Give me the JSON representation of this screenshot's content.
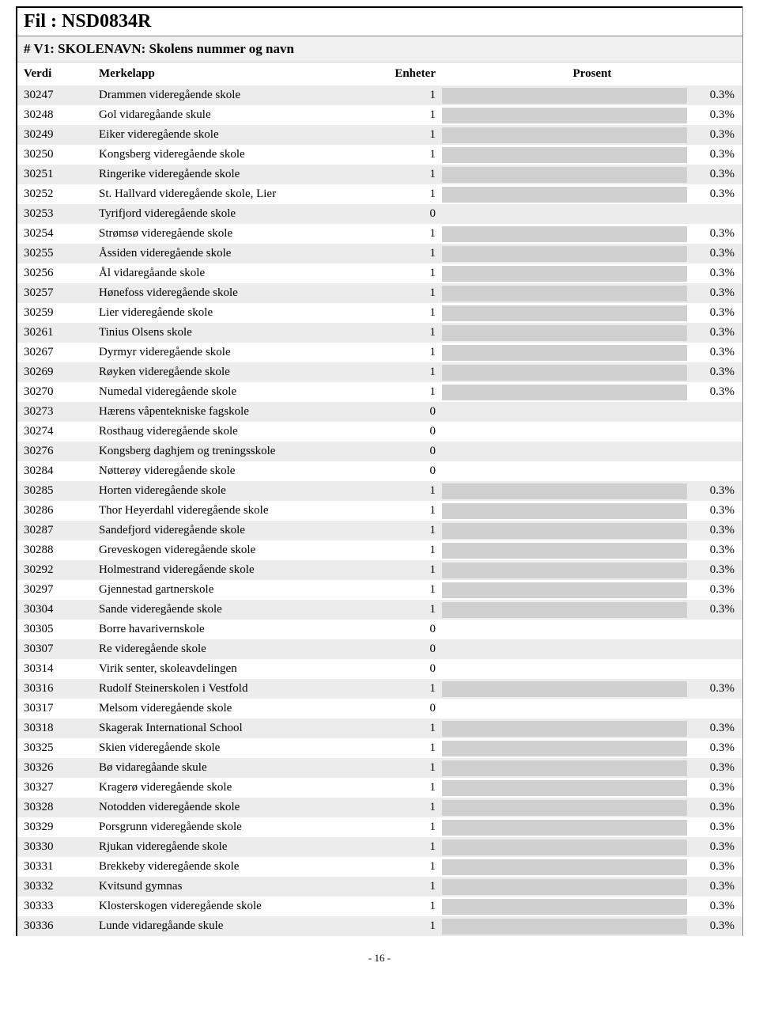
{
  "title": "Fil : NSD0834R",
  "subtitle": "# V1: SKOLENAVN: Skolens nummer og navn",
  "headers": {
    "verdi": "Verdi",
    "merkelapp": "Merkelapp",
    "enheter": "Enheter",
    "prosent": "Prosent"
  },
  "bar_fill_color": "#d0d0d0",
  "bar_full_width_pct": 100,
  "rows": [
    {
      "verdi": "30247",
      "merkelapp": "Drammen videregående skole",
      "enheter": "1",
      "pct": "0.3%",
      "bar": 100
    },
    {
      "verdi": "30248",
      "merkelapp": "Gol vidaregåande skule",
      "enheter": "1",
      "pct": "0.3%",
      "bar": 100
    },
    {
      "verdi": "30249",
      "merkelapp": "Eiker videregående skole",
      "enheter": "1",
      "pct": "0.3%",
      "bar": 100
    },
    {
      "verdi": "30250",
      "merkelapp": "Kongsberg videregående skole",
      "enheter": "1",
      "pct": "0.3%",
      "bar": 100
    },
    {
      "verdi": "30251",
      "merkelapp": "Ringerike videregående skole",
      "enheter": "1",
      "pct": "0.3%",
      "bar": 100
    },
    {
      "verdi": "30252",
      "merkelapp": "St. Hallvard videregående skole, Lier",
      "enheter": "1",
      "pct": "0.3%",
      "bar": 100
    },
    {
      "verdi": "30253",
      "merkelapp": "Tyrifjord videregående skole",
      "enheter": "0",
      "pct": "",
      "bar": 0
    },
    {
      "verdi": "30254",
      "merkelapp": "Strømsø videregående skole",
      "enheter": "1",
      "pct": "0.3%",
      "bar": 100
    },
    {
      "verdi": "30255",
      "merkelapp": "Åssiden videregående skole",
      "enheter": "1",
      "pct": "0.3%",
      "bar": 100
    },
    {
      "verdi": "30256",
      "merkelapp": "Ål vidaregåande skole",
      "enheter": "1",
      "pct": "0.3%",
      "bar": 100
    },
    {
      "verdi": "30257",
      "merkelapp": "Hønefoss videregående skole",
      "enheter": "1",
      "pct": "0.3%",
      "bar": 100
    },
    {
      "verdi": "30259",
      "merkelapp": "Lier videregående skole",
      "enheter": "1",
      "pct": "0.3%",
      "bar": 100
    },
    {
      "verdi": "30261",
      "merkelapp": "Tinius Olsens skole",
      "enheter": "1",
      "pct": "0.3%",
      "bar": 100
    },
    {
      "verdi": "30267",
      "merkelapp": "Dyrmyr videregående skole",
      "enheter": "1",
      "pct": "0.3%",
      "bar": 100
    },
    {
      "verdi": "30269",
      "merkelapp": "Røyken videregående skole",
      "enheter": "1",
      "pct": "0.3%",
      "bar": 100
    },
    {
      "verdi": "30270",
      "merkelapp": "Numedal videregående skole",
      "enheter": "1",
      "pct": "0.3%",
      "bar": 100
    },
    {
      "verdi": "30273",
      "merkelapp": "Hærens våpentekniske fagskole",
      "enheter": "0",
      "pct": "",
      "bar": 0
    },
    {
      "verdi": "30274",
      "merkelapp": "Rosthaug videregående skole",
      "enheter": "0",
      "pct": "",
      "bar": 0
    },
    {
      "verdi": "30276",
      "merkelapp": "Kongsberg daghjem og treningsskole",
      "enheter": "0",
      "pct": "",
      "bar": 0
    },
    {
      "verdi": "30284",
      "merkelapp": "Nøtterøy videregående skole",
      "enheter": "0",
      "pct": "",
      "bar": 0
    },
    {
      "verdi": "30285",
      "merkelapp": "Horten videregående skole",
      "enheter": "1",
      "pct": "0.3%",
      "bar": 100
    },
    {
      "verdi": "30286",
      "merkelapp": "Thor Heyerdahl videregående skole",
      "enheter": "1",
      "pct": "0.3%",
      "bar": 100
    },
    {
      "verdi": "30287",
      "merkelapp": "Sandefjord videregående skole",
      "enheter": "1",
      "pct": "0.3%",
      "bar": 100
    },
    {
      "verdi": "30288",
      "merkelapp": "Greveskogen videregående skole",
      "enheter": "1",
      "pct": "0.3%",
      "bar": 100
    },
    {
      "verdi": "30292",
      "merkelapp": "Holmestrand videregående skole",
      "enheter": "1",
      "pct": "0.3%",
      "bar": 100
    },
    {
      "verdi": "30297",
      "merkelapp": "Gjennestad gartnerskole",
      "enheter": "1",
      "pct": "0.3%",
      "bar": 100
    },
    {
      "verdi": "30304",
      "merkelapp": "Sande videregående skole",
      "enheter": "1",
      "pct": "0.3%",
      "bar": 100
    },
    {
      "verdi": "30305",
      "merkelapp": "Borre havarivernskole",
      "enheter": "0",
      "pct": "",
      "bar": 0
    },
    {
      "verdi": "30307",
      "merkelapp": "Re videregående skole",
      "enheter": "0",
      "pct": "",
      "bar": 0
    },
    {
      "verdi": "30314",
      "merkelapp": "Virik senter, skoleavdelingen",
      "enheter": "0",
      "pct": "",
      "bar": 0
    },
    {
      "verdi": "30316",
      "merkelapp": "Rudolf Steinerskolen i Vestfold",
      "enheter": "1",
      "pct": "0.3%",
      "bar": 100
    },
    {
      "verdi": "30317",
      "merkelapp": "Melsom videregående skole",
      "enheter": "0",
      "pct": "",
      "bar": 0
    },
    {
      "verdi": "30318",
      "merkelapp": "Skagerak International School",
      "enheter": "1",
      "pct": "0.3%",
      "bar": 100
    },
    {
      "verdi": "30325",
      "merkelapp": "Skien videregående skole",
      "enheter": "1",
      "pct": "0.3%",
      "bar": 100
    },
    {
      "verdi": "30326",
      "merkelapp": "Bø vidaregåande skule",
      "enheter": "1",
      "pct": "0.3%",
      "bar": 100
    },
    {
      "verdi": "30327",
      "merkelapp": "Kragerø videregående skole",
      "enheter": "1",
      "pct": "0.3%",
      "bar": 100
    },
    {
      "verdi": "30328",
      "merkelapp": "Notodden videregående skole",
      "enheter": "1",
      "pct": "0.3%",
      "bar": 100
    },
    {
      "verdi": "30329",
      "merkelapp": "Porsgrunn videregående skole",
      "enheter": "1",
      "pct": "0.3%",
      "bar": 100
    },
    {
      "verdi": "30330",
      "merkelapp": "Rjukan videregående skole",
      "enheter": "1",
      "pct": "0.3%",
      "bar": 100
    },
    {
      "verdi": "30331",
      "merkelapp": "Brekkeby videregående skole",
      "enheter": "1",
      "pct": "0.3%",
      "bar": 100
    },
    {
      "verdi": "30332",
      "merkelapp": "Kvitsund gymnas",
      "enheter": "1",
      "pct": "0.3%",
      "bar": 100
    },
    {
      "verdi": "30333",
      "merkelapp": "Klosterskogen videregående skole",
      "enheter": "1",
      "pct": "0.3%",
      "bar": 100
    },
    {
      "verdi": "30336",
      "merkelapp": "Lunde vidaregåande skule",
      "enheter": "1",
      "pct": "0.3%",
      "bar": 100
    }
  ],
  "page_number": "- 16 -"
}
